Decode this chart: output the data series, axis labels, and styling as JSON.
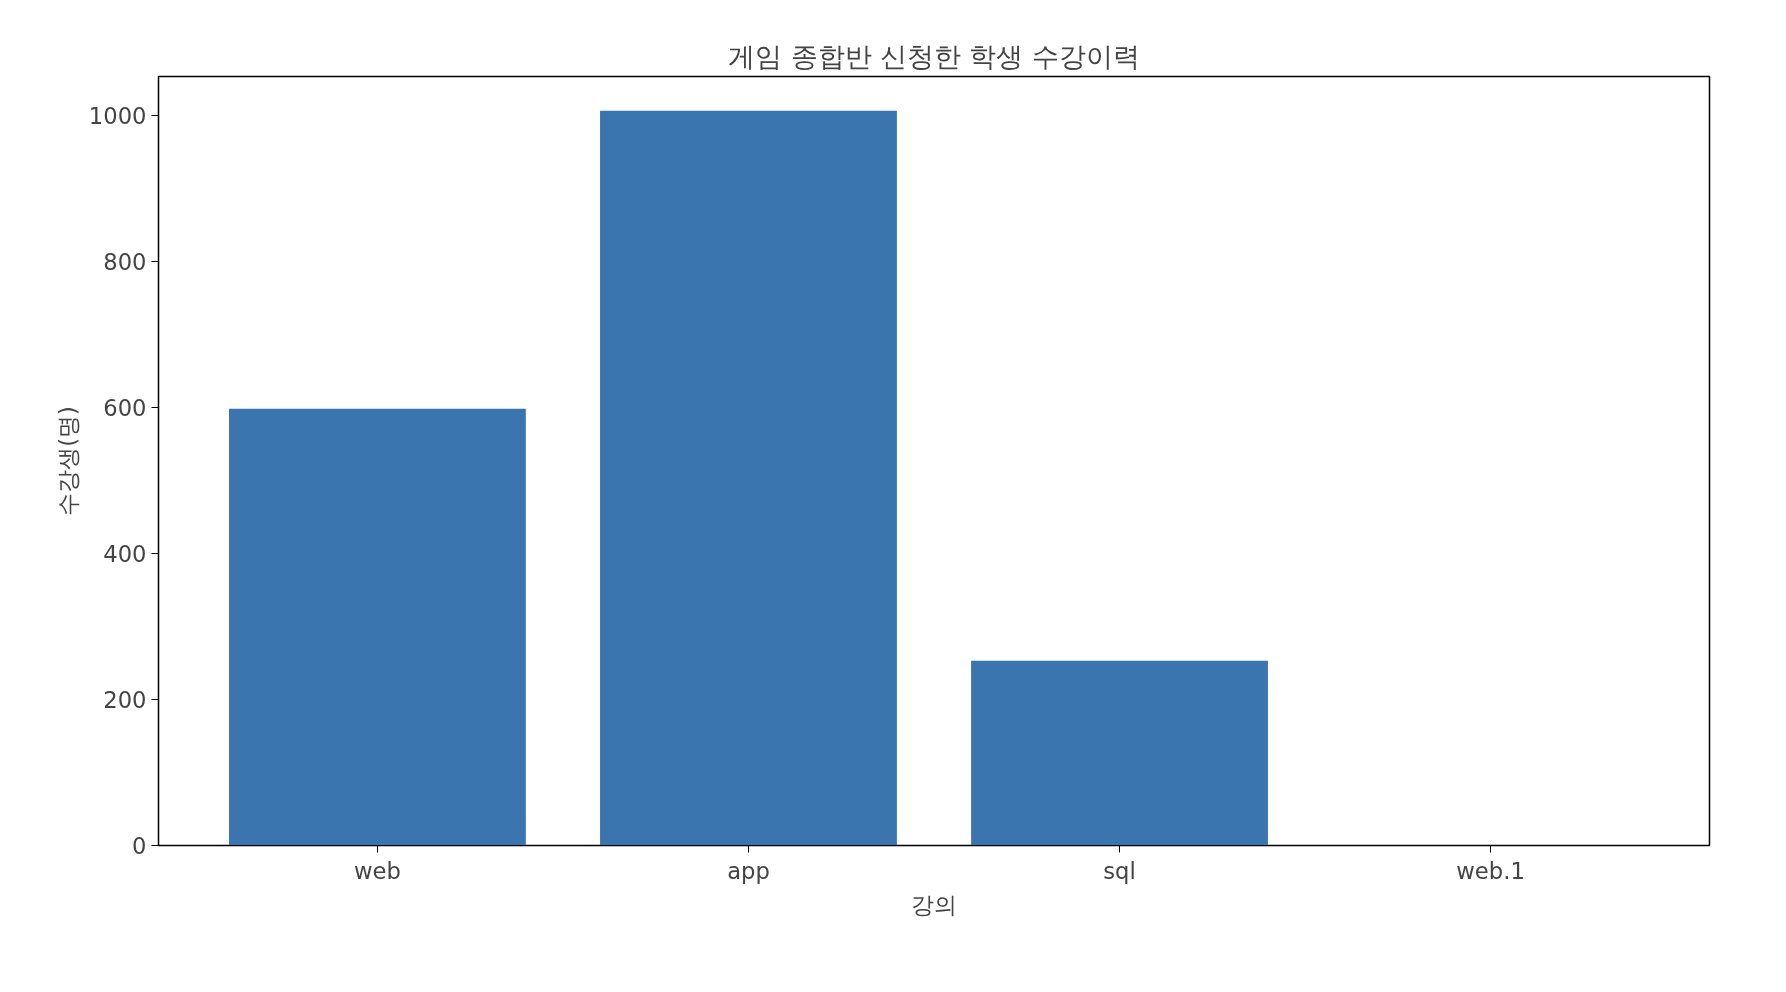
{
  "chart_data": {
    "type": "bar",
    "title": "게임 종합반 신청한 학생 수강이력",
    "xlabel": "강의",
    "ylabel": "수강생(명)",
    "categories": [
      "web",
      "app",
      "sql",
      "web.1"
    ],
    "values": [
      598,
      1006,
      253,
      0
    ],
    "color": "#3a75af",
    "ylim": [
      0,
      1053
    ],
    "yticks": [
      0,
      200,
      400,
      600,
      800,
      1000
    ],
    "grid": false
  }
}
